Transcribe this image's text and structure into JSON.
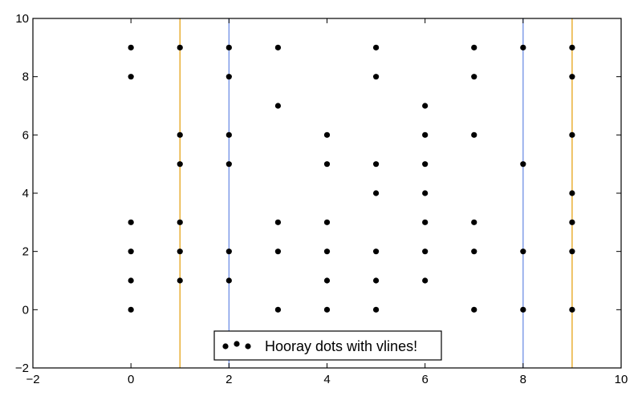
{
  "chart_data": {
    "type": "scatter",
    "xlim": [
      -2,
      10
    ],
    "ylim": [
      -2,
      10
    ],
    "xticks": [
      -2,
      0,
      2,
      4,
      6,
      8,
      10
    ],
    "yticks": [
      -2,
      0,
      2,
      4,
      6,
      8,
      10
    ],
    "grid": false,
    "legend": {
      "placement": "bottom-center",
      "entries": [
        {
          "label": "Hooray dots with vlines!",
          "marker": "dot",
          "color": "#000000"
        }
      ]
    },
    "series": [
      {
        "name": "Hooray dots with vlines!",
        "color": "#000000",
        "points": [
          [
            0,
            9
          ],
          [
            0,
            8
          ],
          [
            0,
            3
          ],
          [
            0,
            2
          ],
          [
            0,
            1
          ],
          [
            0,
            0
          ],
          [
            1,
            9
          ],
          [
            1,
            6
          ],
          [
            1,
            5
          ],
          [
            1,
            3
          ],
          [
            1,
            2
          ],
          [
            1,
            1
          ],
          [
            2,
            9
          ],
          [
            2,
            8
          ],
          [
            2,
            6
          ],
          [
            2,
            5
          ],
          [
            2,
            2
          ],
          [
            2,
            1
          ],
          [
            3,
            9
          ],
          [
            3,
            7
          ],
          [
            3,
            3
          ],
          [
            3,
            2
          ],
          [
            3,
            0
          ],
          [
            4,
            6
          ],
          [
            4,
            5
          ],
          [
            4,
            3
          ],
          [
            4,
            2
          ],
          [
            4,
            1
          ],
          [
            4,
            0
          ],
          [
            5,
            9
          ],
          [
            5,
            8
          ],
          [
            5,
            5
          ],
          [
            5,
            4
          ],
          [
            5,
            2
          ],
          [
            5,
            1
          ],
          [
            5,
            0
          ],
          [
            6,
            7
          ],
          [
            6,
            6
          ],
          [
            6,
            5
          ],
          [
            6,
            4
          ],
          [
            6,
            3
          ],
          [
            6,
            2
          ],
          [
            6,
            1
          ],
          [
            7,
            9
          ],
          [
            7,
            8
          ],
          [
            7,
            6
          ],
          [
            7,
            3
          ],
          [
            7,
            2
          ],
          [
            7,
            0
          ],
          [
            8,
            9
          ],
          [
            8,
            5
          ],
          [
            8,
            2
          ],
          [
            8,
            0
          ],
          [
            9,
            9
          ],
          [
            9,
            8
          ],
          [
            9,
            6
          ],
          [
            9,
            4
          ],
          [
            9,
            3
          ],
          [
            9,
            2
          ],
          [
            9,
            0
          ]
        ]
      }
    ],
    "vlines": [
      {
        "x": 1,
        "color": "#e6a317"
      },
      {
        "x": 2,
        "color": "#6f8fe6"
      },
      {
        "x": 8,
        "color": "#6f8fe6"
      },
      {
        "x": 9,
        "color": "#e6a317"
      }
    ]
  }
}
